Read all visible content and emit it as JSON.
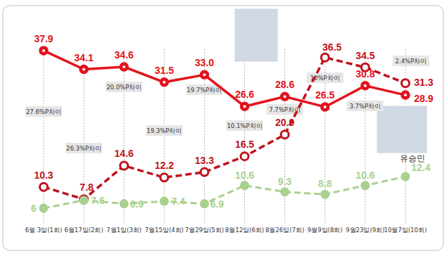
{
  "chart_data": {
    "type": "line",
    "categories": [
      "6월 3일(1회)",
      "6월17일(2회)",
      "7월1일(3회)",
      "7월15일(4회)",
      "7월29일(5회)",
      "8월12일(6회)",
      "8월26일(7회)",
      "9월9일(8회)",
      "9월23일(9회)",
      "10월7일(10회)"
    ],
    "series": [
      {
        "color": "#e3121c",
        "line_style": "solid",
        "marker": "circle",
        "values": [
          37.9,
          34.1,
          34.6,
          31.5,
          33.0,
          26.6,
          28.6,
          26.5,
          30.8,
          28.9
        ],
        "value_labels": [
          "37.9",
          "34.1",
          "34.6",
          "31.5",
          "33.0",
          "26.6",
          "28.6",
          "26.5",
          "30.8",
          "28.9"
        ]
      },
      {
        "color": "#c0121c",
        "line_style": "dashed",
        "marker": "circle",
        "values": [
          10.3,
          7.8,
          14.6,
          12.2,
          13.3,
          16.5,
          20.9,
          36.5,
          34.5,
          31.3
        ]
      },
      {
        "name": "유승민",
        "color": "#a9d18e",
        "line_style": "dashed",
        "marker": "circle",
        "values": [
          6,
          7.6,
          6.9,
          7.4,
          6.9,
          10.6,
          9.3,
          8.8,
          10.6,
          12.4
        ]
      }
    ],
    "annotations": [
      "27.6%P차이",
      "26.3%P차이",
      "20.0%P차이",
      "19.3%P차이",
      "19.7%P차이",
      "10.1%P차이",
      "7.7%P차이",
      "10%P차이",
      "3.7%P차이",
      "2.4%P차이"
    ],
    "ylim": [
      0,
      47
    ],
    "grid": true,
    "data_labels": true,
    "tick_labels": "x"
  }
}
